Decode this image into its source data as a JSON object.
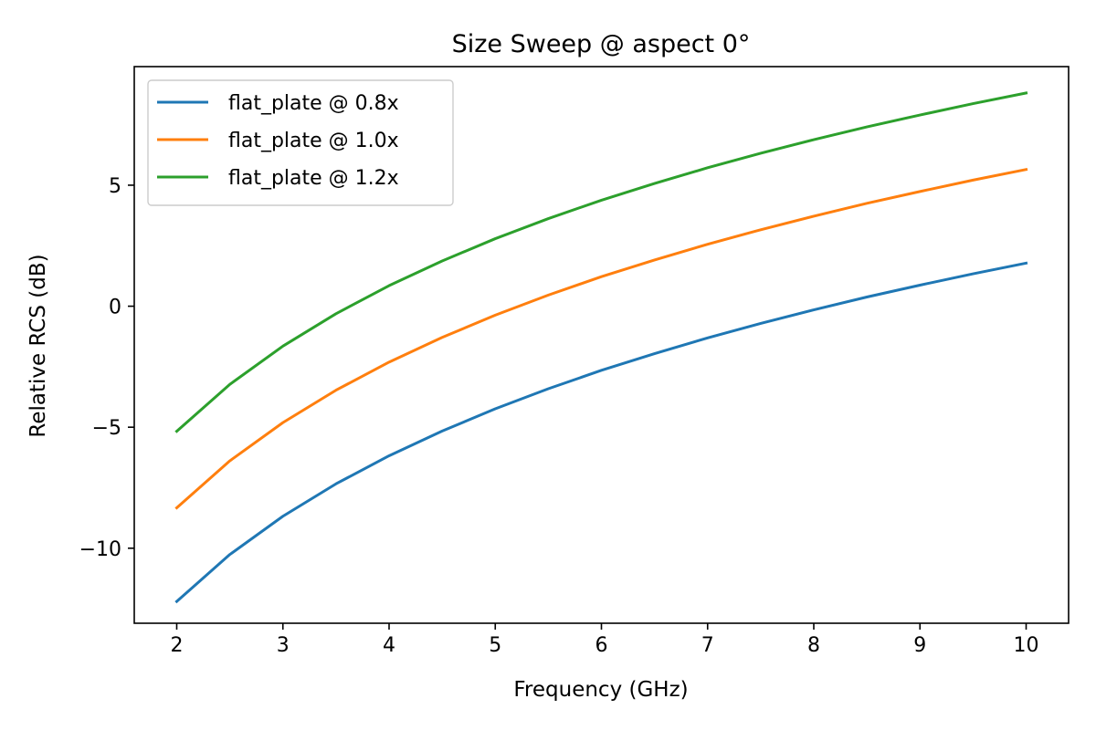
{
  "chart_data": {
    "type": "line",
    "title": "Size Sweep @ aspect 0°",
    "xlabel": "Frequency (GHz)",
    "ylabel": "Relative RCS (dB)",
    "xlim": [
      1.6,
      10.4
    ],
    "ylim": [
      -13.1,
      9.9
    ],
    "xticks": [
      2,
      3,
      4,
      5,
      6,
      7,
      8,
      9,
      10
    ],
    "xtick_labels": [
      "2",
      "3",
      "4",
      "5",
      "6",
      "7",
      "8",
      "9",
      "10"
    ],
    "yticks": [
      -10,
      -5,
      0,
      5
    ],
    "ytick_labels": [
      "−10",
      "−5",
      "0",
      "5"
    ],
    "grid": false,
    "legend_position": "top-left",
    "x": [
      2,
      2.5,
      3,
      3.5,
      4,
      4.5,
      5,
      5.5,
      6,
      6.5,
      7,
      7.5,
      8,
      8.5,
      9,
      9.5,
      10
    ],
    "series": [
      {
        "name": "flat_plate @ 0.8x",
        "color": "#1f77b4",
        "values": [
          -12.2,
          -10.26,
          -8.68,
          -7.34,
          -6.18,
          -5.16,
          -4.24,
          -3.41,
          -2.65,
          -1.96,
          -1.31,
          -0.71,
          -0.15,
          0.38,
          0.87,
          1.34,
          1.78
        ]
      },
      {
        "name": "flat_plate @ 1.0x",
        "color": "#ff7f0e",
        "values": [
          -8.33,
          -6.39,
          -4.81,
          -3.47,
          -2.31,
          -1.29,
          -0.37,
          0.46,
          1.22,
          1.91,
          2.56,
          3.16,
          3.72,
          4.25,
          4.74,
          5.21,
          5.65
        ]
      },
      {
        "name": "flat_plate @ 1.2x",
        "color": "#2ca02c",
        "values": [
          -5.17,
          -3.23,
          -1.65,
          -0.31,
          0.85,
          1.87,
          2.79,
          3.62,
          4.38,
          5.07,
          5.72,
          6.32,
          6.88,
          7.41,
          7.9,
          8.37,
          8.81
        ]
      }
    ]
  }
}
